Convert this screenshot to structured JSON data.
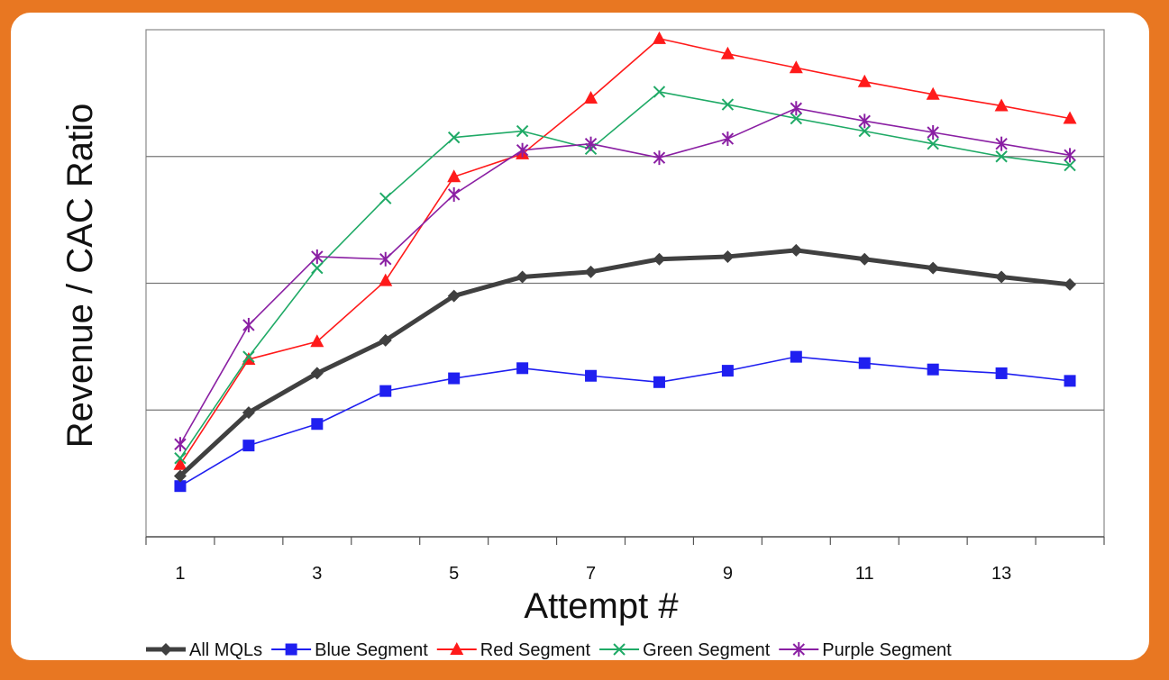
{
  "chart_data": {
    "type": "line",
    "title": "",
    "xlabel": "Attempt #",
    "ylabel": "Revenue / CAC Ratio",
    "x": [
      1,
      2,
      3,
      4,
      5,
      6,
      7,
      8,
      9,
      10,
      11,
      12,
      13,
      14
    ],
    "xticks": [
      1,
      3,
      5,
      7,
      9,
      11,
      13
    ],
    "xlim": [
      0.5,
      14.5
    ],
    "ylim": [
      0,
      4
    ],
    "y_tick_labels_shown": false,
    "grid": "horizontal",
    "legend_position": "bottom",
    "series": [
      {
        "name": "All MQLs",
        "color": "#404040",
        "marker": "diamond",
        "line_width": "thick",
        "values": [
          0.48,
          0.98,
          1.29,
          1.55,
          1.9,
          2.05,
          2.09,
          2.19,
          2.21,
          2.26,
          2.19,
          2.12,
          2.05,
          1.99
        ]
      },
      {
        "name": "Blue Segment",
        "color": "#1f1ff0",
        "marker": "square",
        "values": [
          0.4,
          0.72,
          0.89,
          1.15,
          1.25,
          1.33,
          1.27,
          1.22,
          1.31,
          1.42,
          1.37,
          1.32,
          1.29,
          1.23
        ]
      },
      {
        "name": "Red Segment",
        "color": "#ff1a1a",
        "marker": "triangle",
        "values": [
          0.57,
          1.4,
          1.54,
          2.02,
          2.84,
          3.02,
          3.46,
          3.93,
          3.81,
          3.7,
          3.59,
          3.49,
          3.4,
          3.3
        ]
      },
      {
        "name": "Green Segment",
        "color": "#1faa66",
        "marker": "x",
        "values": [
          0.62,
          1.42,
          2.12,
          2.67,
          3.15,
          3.2,
          3.06,
          3.51,
          3.41,
          3.3,
          3.2,
          3.1,
          3.0,
          2.93
        ]
      },
      {
        "name": "Purple Segment",
        "color": "#8a1fa3",
        "marker": "asterisk",
        "values": [
          0.73,
          1.67,
          2.21,
          2.19,
          2.7,
          3.05,
          3.1,
          2.99,
          3.14,
          3.38,
          3.28,
          3.19,
          3.1,
          3.01
        ]
      }
    ]
  }
}
